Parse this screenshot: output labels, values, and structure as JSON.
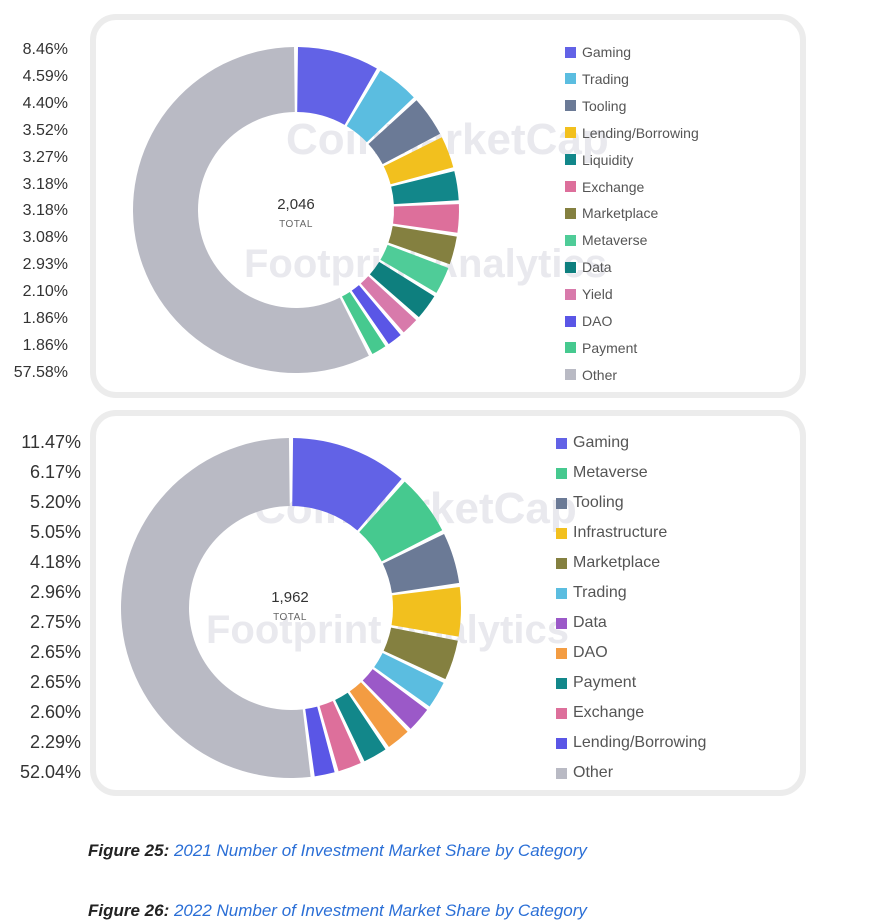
{
  "watermarks": {
    "coinmarketcap": "CoinMarketCap",
    "footprint": "Footprint Analytics"
  },
  "total_label": "TOTAL",
  "chart_data": [
    {
      "type": "pie",
      "variant": "donut",
      "total": "2,046",
      "legend_placement": "right",
      "categories": [
        "Gaming",
        "Trading",
        "Tooling",
        "Lending/Borrowing",
        "Liquidity",
        "Exchange",
        "Marketplace",
        "Metaverse",
        "Data",
        "Yield",
        "DAO",
        "Payment",
        "Other"
      ],
      "values": [
        8.46,
        4.59,
        4.4,
        3.52,
        3.27,
        3.18,
        3.18,
        3.08,
        2.93,
        2.1,
        1.86,
        1.86,
        57.58
      ],
      "labels": [
        "8.46%",
        "4.59%",
        "4.40%",
        "3.52%",
        "3.27%",
        "3.18%",
        "3.18%",
        "3.08%",
        "2.93%",
        "2.10%",
        "1.86%",
        "1.86%",
        "57.58%"
      ],
      "colors": [
        "#6262e6",
        "#5bbde0",
        "#6b7a96",
        "#f2c01e",
        "#12878a",
        "#dd6f9b",
        "#848040",
        "#4fcc98",
        "#0e7f7e",
        "#d87aab",
        "#5a56e6",
        "#46c98f",
        "#b9bac4"
      ]
    },
    {
      "type": "pie",
      "variant": "donut",
      "total": "1,962",
      "legend_placement": "right",
      "categories": [
        "Gaming",
        "Metaverse",
        "Tooling",
        "Infrastructure",
        "Marketplace",
        "Trading",
        "Data",
        "DAO",
        "Payment",
        "Exchange",
        "Lending/Borrowing",
        "Other"
      ],
      "values": [
        11.47,
        6.17,
        5.2,
        5.05,
        4.18,
        2.96,
        2.75,
        2.65,
        2.65,
        2.6,
        2.29,
        52.04
      ],
      "labels": [
        "11.47%",
        "6.17%",
        "5.20%",
        "5.05%",
        "4.18%",
        "2.96%",
        "2.75%",
        "2.65%",
        "2.65%",
        "2.60%",
        "2.29%",
        "52.04%"
      ],
      "colors": [
        "#6262e6",
        "#46c98f",
        "#6b7a96",
        "#f2c01e",
        "#848040",
        "#5bbde0",
        "#9b59c8",
        "#f39c42",
        "#12878a",
        "#dd6f9b",
        "#5a56e6",
        "#b9bac4"
      ]
    }
  ],
  "captions": [
    {
      "prefix": "Figure 25: ",
      "text": "2021 Number of Investment Market Share by Category"
    },
    {
      "prefix": "Figure 26: ",
      "text": "2022 Number of Investment Market Share by Category"
    }
  ]
}
